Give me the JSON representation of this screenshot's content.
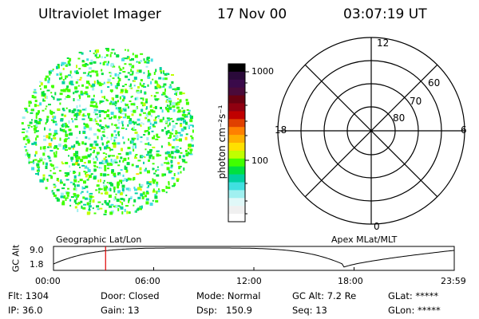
{
  "header": {
    "instrument": "Ultraviolet Imager",
    "date": "17 Nov 00",
    "time": "03:07:19 UT"
  },
  "image_panel": {
    "label": "Geographic Lat/Lon",
    "description_color_pixels": "green/cyan/yellow noise pattern"
  },
  "colorbar": {
    "unit_label": "photon cm⁻²s⁻¹",
    "tick_1000": "1000",
    "tick_100": "100",
    "colors": [
      "#000000",
      "#2a0a3a",
      "#3a0a4a",
      "#4a0a3a",
      "#6a0010",
      "#900010",
      "#c00000",
      "#e04000",
      "#ff8000",
      "#ffb000",
      "#ffe000",
      "#c0ff00",
      "#40ff00",
      "#00e040",
      "#00d0a0",
      "#40e0e0",
      "#a0f0f0",
      "#e0f8f8",
      "#f0f0f0",
      "#ffffff"
    ]
  },
  "polar_plot": {
    "label": "Apex MLat/MLT",
    "mlt_12": "12",
    "mlt_18": "18",
    "mlt_6": "6",
    "mlt_0": "0",
    "lat_60": "60",
    "lat_70": "70",
    "lat_80": "80"
  },
  "timeline": {
    "ylabel": "GC Alt",
    "y_high": "9.0",
    "y_low": "1.8",
    "ticks": [
      "00:00",
      "06:00",
      "12:00",
      "18:00",
      "23:59"
    ],
    "current_marker_hours": 3.12,
    "marker_color": "#e00000"
  },
  "status": {
    "flt": "Flt: 1304",
    "ip": "IP: 36.0",
    "door": "Door: Closed",
    "gain": "Gain: 13",
    "mode": "Mode: Normal",
    "dsp": "Dsp:   150.9",
    "gc_alt": "GC Alt: 7.2 Re",
    "seq": "Seq: 13",
    "glat": "GLat: *****",
    "glon": "GLon: *****"
  }
}
